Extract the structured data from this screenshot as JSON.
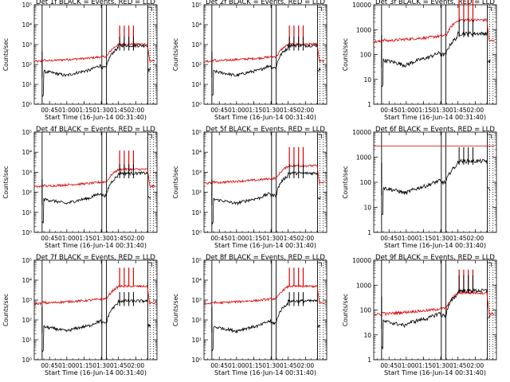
{
  "chart_data": [
    {
      "type": "line",
      "title": "Det 1f BLACK = Events, RED = LLD",
      "xlabel": "Start Time (16-Jun-14 00:31:40)",
      "ylabel": "Counts/sec",
      "yscale": "log",
      "ylim": [
        1,
        100000
      ],
      "ytick_labels": [
        {
          "v": 1,
          "label": "10⁰"
        },
        {
          "v": 10,
          "label": "10¹"
        },
        {
          "v": 100,
          "label": "10²"
        },
        {
          "v": 1000,
          "label": "10³"
        },
        {
          "v": 10000,
          "label": "10⁴"
        },
        {
          "v": 100000,
          "label": "10⁵"
        }
      ],
      "red_level": 150,
      "events_base": "low",
      "red_flat": false
    },
    {
      "type": "line",
      "title": "Det 2f BLACK = Events, RED = LLD",
      "xlabel": "Start Time (16-Jun-14 00:31:40)",
      "ylabel": "Counts/sec",
      "yscale": "log",
      "ylim": [
        1,
        100000
      ],
      "ytick_labels": [
        {
          "v": 1,
          "label": "10⁰"
        },
        {
          "v": 10,
          "label": "10¹"
        },
        {
          "v": 100,
          "label": "10²"
        },
        {
          "v": 1000,
          "label": "10³"
        },
        {
          "v": 10000,
          "label": "10⁴"
        },
        {
          "v": 100000,
          "label": "10⁵"
        }
      ],
      "red_level": 150,
      "events_base": "low",
      "red_flat": false
    },
    {
      "type": "line",
      "title": "Det 3f BLACK = Events, RED = LLD",
      "xlabel": "Start Time (16-Jun-14 00:31:40)",
      "ylabel": "Counts/sec",
      "yscale": "log",
      "ylim": [
        1,
        10000
      ],
      "ytick_labels": [
        {
          "v": 1,
          "label": "1"
        },
        {
          "v": 10,
          "label": "10"
        },
        {
          "v": 100,
          "label": "100"
        },
        {
          "v": 1000,
          "label": "1000"
        },
        {
          "v": 10000,
          "label": "10000"
        }
      ],
      "red_level": 350,
      "events_base": "mid",
      "red_flat": false
    },
    {
      "type": "line",
      "title": "Det 4f BLACK = Events, RED = LLD",
      "xlabel": "Start Time (16-Jun-14 00:31:40)",
      "ylabel": "Counts/sec",
      "yscale": "log",
      "ylim": [
        1,
        100000
      ],
      "ytick_labels": [
        {
          "v": 1,
          "label": "10⁰"
        },
        {
          "v": 10,
          "label": "10¹"
        },
        {
          "v": 100,
          "label": "10²"
        },
        {
          "v": 1000,
          "label": "10³"
        },
        {
          "v": 10000,
          "label": "10⁴"
        },
        {
          "v": 100000,
          "label": "10⁵"
        }
      ],
      "red_level": 200,
      "events_base": "low",
      "red_flat": false
    },
    {
      "type": "line",
      "title": "Det 5f BLACK = Events, RED = LLD",
      "xlabel": "Start Time (16-Jun-14 00:31:40)",
      "ylabel": "Counts/sec",
      "yscale": "log",
      "ylim": [
        1,
        100000
      ],
      "ytick_labels": [
        {
          "v": 1,
          "label": "10⁰"
        },
        {
          "v": 10,
          "label": "10¹"
        },
        {
          "v": 100,
          "label": "10²"
        },
        {
          "v": 1000,
          "label": "10³"
        },
        {
          "v": 10000,
          "label": "10⁴"
        },
        {
          "v": 100000,
          "label": "10⁵"
        }
      ],
      "red_level": 300,
      "events_base": "low",
      "red_flat": false
    },
    {
      "type": "line",
      "title": "Det 6f BLACK = Events, RED = LLD",
      "xlabel": "Start Time (16-Jun-14 00:31:40)",
      "ylabel": "Counts/sec",
      "yscale": "log",
      "ylim": [
        1,
        10000
      ],
      "ytick_labels": [
        {
          "v": 1,
          "label": "1"
        },
        {
          "v": 10,
          "label": "10"
        },
        {
          "v": 100,
          "label": "100"
        },
        {
          "v": 1000,
          "label": "1000"
        },
        {
          "v": 10000,
          "label": "10000"
        }
      ],
      "red_level": 2800,
      "events_base": "mid",
      "red_flat": true
    },
    {
      "type": "line",
      "title": "Det 7f BLACK = Events, RED = LLD",
      "xlabel": "Start Time (16-Jun-14 00:31:40)",
      "ylabel": "Counts/sec",
      "yscale": "log",
      "ylim": [
        1,
        100000
      ],
      "ytick_labels": [
        {
          "v": 1,
          "label": "10⁰"
        },
        {
          "v": 10,
          "label": "10¹"
        },
        {
          "v": 100,
          "label": "10²"
        },
        {
          "v": 1000,
          "label": "10³"
        },
        {
          "v": 10000,
          "label": "10⁴"
        },
        {
          "v": 100000,
          "label": "10⁵"
        }
      ],
      "red_level": 700,
      "events_base": "low",
      "red_flat": false
    },
    {
      "type": "line",
      "title": "Det 8f BLACK = Events, RED = LLD",
      "xlabel": "Start Time (16-Jun-14 00:31:40)",
      "ylabel": "Counts/sec",
      "yscale": "log",
      "ylim": [
        1,
        100000
      ],
      "ytick_labels": [
        {
          "v": 1,
          "label": "10⁰"
        },
        {
          "v": 10,
          "label": "10¹"
        },
        {
          "v": 100,
          "label": "10²"
        },
        {
          "v": 1000,
          "label": "10³"
        },
        {
          "v": 10000,
          "label": "10⁴"
        },
        {
          "v": 100000,
          "label": "10⁵"
        }
      ],
      "red_level": 700,
      "events_base": "low",
      "red_flat": false
    },
    {
      "type": "line",
      "title": "Det 9f BLACK = Events, RED = LLD",
      "xlabel": "Start Time (16-Jun-14 00:31:40)",
      "ylabel": "Counts/sec",
      "yscale": "log",
      "ylim": [
        1,
        10000
      ],
      "ytick_labels": [
        {
          "v": 1,
          "label": "1"
        },
        {
          "v": 10,
          "label": "10"
        },
        {
          "v": 100,
          "label": "100"
        },
        {
          "v": 1000,
          "label": "1000"
        },
        {
          "v": 10000,
          "label": "10000"
        }
      ],
      "red_level": 70,
      "events_base": "low9",
      "red_flat": false
    }
  ],
  "x_tick_labels": [
    "00:45",
    "01:00",
    "01:15",
    "01:30",
    "01:45",
    "02:00"
  ],
  "x_tick_minutes": [
    45,
    60,
    75,
    90,
    105,
    120
  ],
  "x_range_minutes": [
    31.67,
    138.5
  ],
  "vlines_solid_minutes": [
    38.5,
    90.5,
    94.5,
    130.5
  ],
  "vlines_dotted_minutes": [
    132.5,
    135.5
  ],
  "colors": {
    "events": "#000000",
    "lld": "#dd0000",
    "axes": "#000000"
  }
}
